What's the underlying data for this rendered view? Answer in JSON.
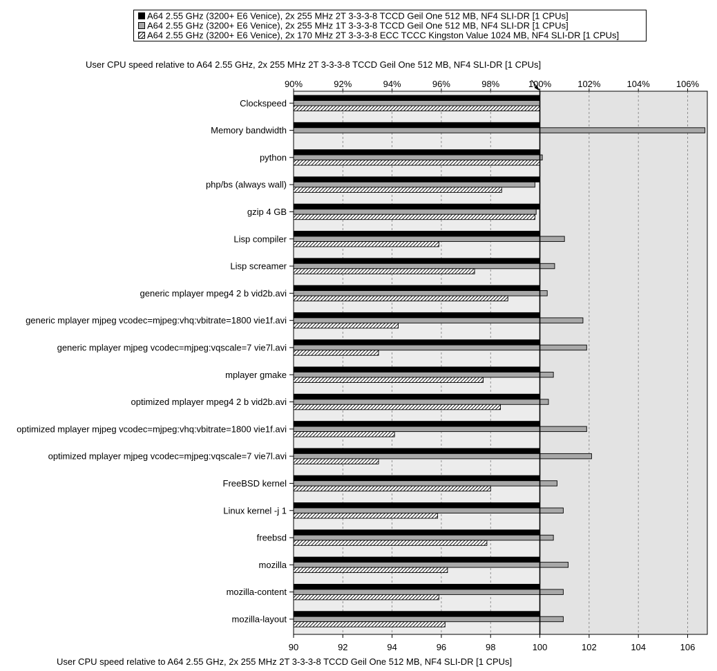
{
  "chart_data": {
    "type": "bar",
    "orientation": "horizontal",
    "top_axis_title": "User CPU speed relative to A64 2.55 GHz, 2x 255 MHz 2T 3-3-3-8 TCCD Geil One 512 MB, NF4 SLI-DR [1 CPUs]",
    "xlabel": "User CPU speed relative to A64 2.55 GHz, 2x 255 MHz 2T 3-3-3-8 TCCD Geil One 512 MB, NF4 SLI-DR [1 CPUs]",
    "xlim": [
      90,
      106.8
    ],
    "reference_value": 100,
    "grid": true,
    "legend_position": "top",
    "top_ticks": [
      "90%",
      "92%",
      "94%",
      "96%",
      "98%",
      "100%",
      "102%",
      "104%",
      "106%"
    ],
    "bottom_ticks": [
      "90",
      "92",
      "94",
      "96",
      "98",
      "100",
      "102",
      "104",
      "106"
    ],
    "tick_values": [
      90,
      92,
      94,
      96,
      98,
      100,
      102,
      104,
      106
    ],
    "categories": [
      "Clockspeed",
      "Memory bandwidth",
      "python",
      "php/bs (always wall)",
      "gzip 4 GB",
      "Lisp compiler",
      "Lisp screamer",
      "generic mplayer mpeg4 2 b vid2b.avi",
      "generic mplayer mjpeg vcodec=mjpeg:vhq:vbitrate=1800 vie1f.avi",
      "generic mplayer mjpeg vcodec=mjpeg:vqscale=7 vie7l.avi",
      "mplayer gmake",
      "optimized mplayer mpeg4 2 b vid2b.avi",
      "optimized mplayer mjpeg vcodec=mjpeg:vhq:vbitrate=1800 vie1f.avi",
      "optimized mplayer mjpeg vcodec=mjpeg:vqscale=7 vie7l.avi",
      "FreeBSD kernel",
      "Linux kernel -j 1",
      "freebsd",
      "mozilla",
      "mozilla-content",
      "mozilla-layout"
    ],
    "series": [
      {
        "name": "A64 2.55 GHz (3200+ E6 Venice), 2x 255 MHz 2T 3-3-3-8 TCCD Geil One 512 MB, NF4 SLI-DR [1 CPUs]",
        "color": "#000000",
        "pattern": "solid",
        "values": [
          100,
          100,
          100,
          100,
          100,
          100,
          100,
          100,
          100,
          100,
          100,
          100,
          100,
          100,
          100,
          100,
          100,
          100,
          100,
          100
        ]
      },
      {
        "name": "A64 2.55 GHz (3200+ E6 Venice), 2x 255 MHz 1T 3-3-3-8 TCCD Geil One 512 MB, NF4 SLI-DR [1 CPUs]",
        "color": "#a8a8a8",
        "pattern": "solid",
        "values": [
          100,
          106.7,
          100.1,
          99.8,
          99.85,
          101.0,
          100.6,
          100.3,
          101.75,
          101.9,
          100.55,
          100.35,
          101.9,
          102.1,
          100.7,
          100.95,
          100.55,
          101.15,
          100.95,
          100.95
        ]
      },
      {
        "name": "A64 2.55 GHz (3200+ E6 Venice), 2x 170 MHz 2T 3-3-3-8 ECC TCCC Kingston Value 1024 MB, NF4 SLI-DR [1 CPUs]",
        "color": "#ffffff",
        "pattern": "hatched",
        "values": [
          100,
          null,
          100,
          98.45,
          99.8,
          95.9,
          97.35,
          98.7,
          94.25,
          93.45,
          97.7,
          98.4,
          94.1,
          93.45,
          98.0,
          95.85,
          97.85,
          96.25,
          95.9,
          96.15
        ]
      }
    ]
  }
}
